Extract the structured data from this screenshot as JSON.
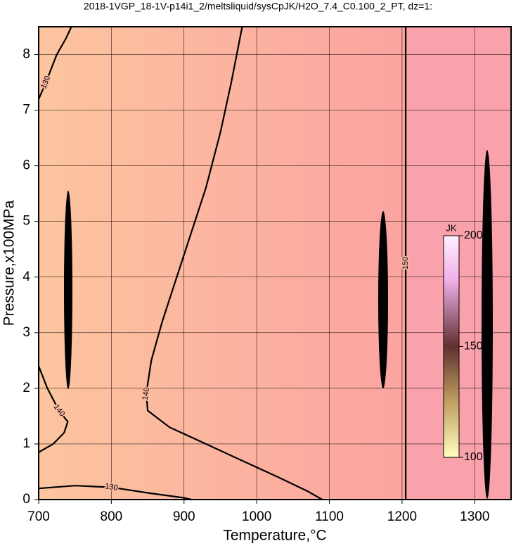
{
  "chart_data": {
    "type": "contour",
    "title": "2018-1VGP_18-1V-p14i1_2/meltsliquid/sysCpJK/H2O_7.4_C0.100_2_PT, dz=1:",
    "xlabel": "Temperature,°C",
    "ylabel": "Pressure,x100MPa",
    "xlim": [
      700,
      1350
    ],
    "ylim": [
      0,
      8.5
    ],
    "xticks": [
      700,
      800,
      900,
      1000,
      1100,
      1200,
      1300
    ],
    "yticks": [
      0,
      1,
      2,
      3,
      4,
      5,
      6,
      7,
      8
    ],
    "grid": true,
    "colorbar": {
      "label": "JK",
      "lim": [
        100,
        200
      ],
      "ticks": [
        100,
        150,
        200
      ]
    },
    "contours": [
      {
        "level": 140,
        "x": [
          1090,
          1070,
          1030,
          980,
          930,
          880,
          850,
          848,
          855,
          870,
          890,
          910,
          930,
          950,
          965,
          980
        ],
        "y": [
          0,
          0.15,
          0.4,
          0.7,
          1.0,
          1.3,
          1.6,
          1.9,
          2.5,
          3.2,
          4.0,
          4.8,
          5.6,
          6.6,
          7.5,
          8.5
        ]
      },
      {
        "level": 130,
        "x": [
          700,
          710,
          725,
          738,
          745
        ],
        "y": [
          7.2,
          7.5,
          8.0,
          8.3,
          8.5
        ]
      },
      {
        "level": 140,
        "x": [
          700,
          712,
          728,
          740,
          735,
          720,
          700
        ],
        "y": [
          2.4,
          2.0,
          1.6,
          1.4,
          1.2,
          1.0,
          0.85
        ]
      },
      {
        "level": 130,
        "x": [
          700,
          750,
          800,
          850,
          900,
          910
        ],
        "y": [
          0.2,
          0.25,
          0.22,
          0.12,
          0.03,
          0
        ]
      },
      {
        "level": 150,
        "x": [
          1205,
          1205,
          1205
        ],
        "y": [
          0,
          4.25,
          8.5
        ]
      }
    ]
  }
}
